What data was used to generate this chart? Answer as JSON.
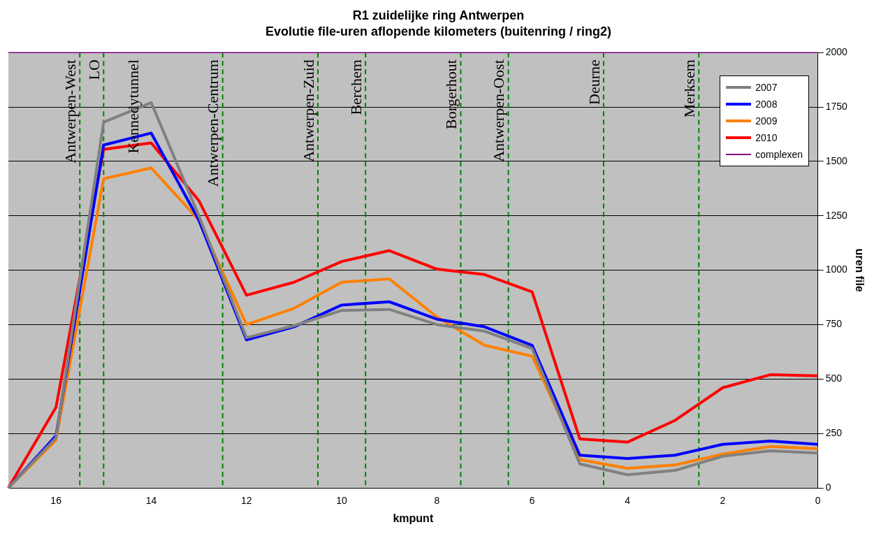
{
  "chart_data": {
    "type": "line",
    "title": "R1 zuidelijke ring Antwerpen",
    "subtitle": "Evolutie file-uren aflopende kilometers (buitenring / ring2)",
    "xlabel": "kmpunt",
    "ylabel": "uren file",
    "x": [
      17,
      16,
      15,
      14,
      13,
      12,
      11,
      10,
      9,
      8,
      7,
      6,
      5,
      4,
      3,
      2,
      1,
      0
    ],
    "series": [
      {
        "name": "2007",
        "color": "#808080",
        "values": [
          0,
          230,
          1680,
          1770,
          1250,
          690,
          745,
          815,
          820,
          750,
          720,
          640,
          110,
          60,
          80,
          145,
          170,
          160
        ]
      },
      {
        "name": "2008",
        "color": "#0000ff",
        "values": [
          0,
          240,
          1575,
          1630,
          1230,
          680,
          740,
          840,
          855,
          775,
          740,
          655,
          150,
          135,
          150,
          200,
          215,
          200
        ]
      },
      {
        "name": "2009",
        "color": "#ff8000",
        "values": [
          0,
          220,
          1420,
          1470,
          1230,
          750,
          825,
          945,
          960,
          785,
          655,
          605,
          130,
          90,
          105,
          155,
          190,
          180
        ]
      },
      {
        "name": "2010",
        "color": "#ff0000",
        "values": [
          0,
          370,
          1555,
          1585,
          1320,
          885,
          945,
          1040,
          1090,
          1005,
          980,
          900,
          225,
          210,
          310,
          460,
          520,
          515
        ]
      },
      {
        "name": "complexen",
        "color": "#800080",
        "x": [
          17,
          0
        ],
        "values": [
          2000,
          2000
        ]
      }
    ],
    "xlim": [
      17,
      0
    ],
    "xticks": [
      16,
      14,
      12,
      10,
      8,
      6,
      4,
      2,
      0
    ],
    "ylim": [
      0,
      2000
    ],
    "yticks": [
      0,
      250,
      500,
      750,
      1000,
      1250,
      1500,
      1750,
      2000
    ],
    "grid": "y",
    "legend": "top right",
    "marker": "none",
    "line_style": "solid",
    "ref_lines": [
      {
        "axis": "x",
        "value": 15.5,
        "label": "Antwerpen-West",
        "color": "#008000",
        "line_style": "dashed"
      },
      {
        "axis": "x",
        "value": 15,
        "label": "LO",
        "color": "#008000",
        "line_style": "dashed"
      },
      {
        "axis": "x",
        "value": 12.5,
        "label": "Antwerpen-Centrum",
        "color": "#008000",
        "line_style": "dashed"
      },
      {
        "axis": "x",
        "value": 10.5,
        "label": "Antwerpen-Zuid",
        "color": "#008000",
        "line_style": "dashed"
      },
      {
        "axis": "x",
        "value": 9.5,
        "label": "Berchem",
        "color": "#008000",
        "line_style": "dashed"
      },
      {
        "axis": "x",
        "value": 7.5,
        "label": "Borgerhout",
        "color": "#008000",
        "line_style": "dashed"
      },
      {
        "axis": "x",
        "value": 6.5,
        "label": "Antwerpen-Oost",
        "color": "#008000",
        "line_style": "dashed"
      },
      {
        "axis": "x",
        "value": 4.5,
        "label": "Deurne",
        "color": "#008000",
        "line_style": "dashed"
      },
      {
        "axis": "x",
        "value": 2.5,
        "label": "Merksem",
        "color": "#008000",
        "line_style": "dashed"
      }
    ],
    "annotations": [
      "Kennedytunnel"
    ]
  }
}
